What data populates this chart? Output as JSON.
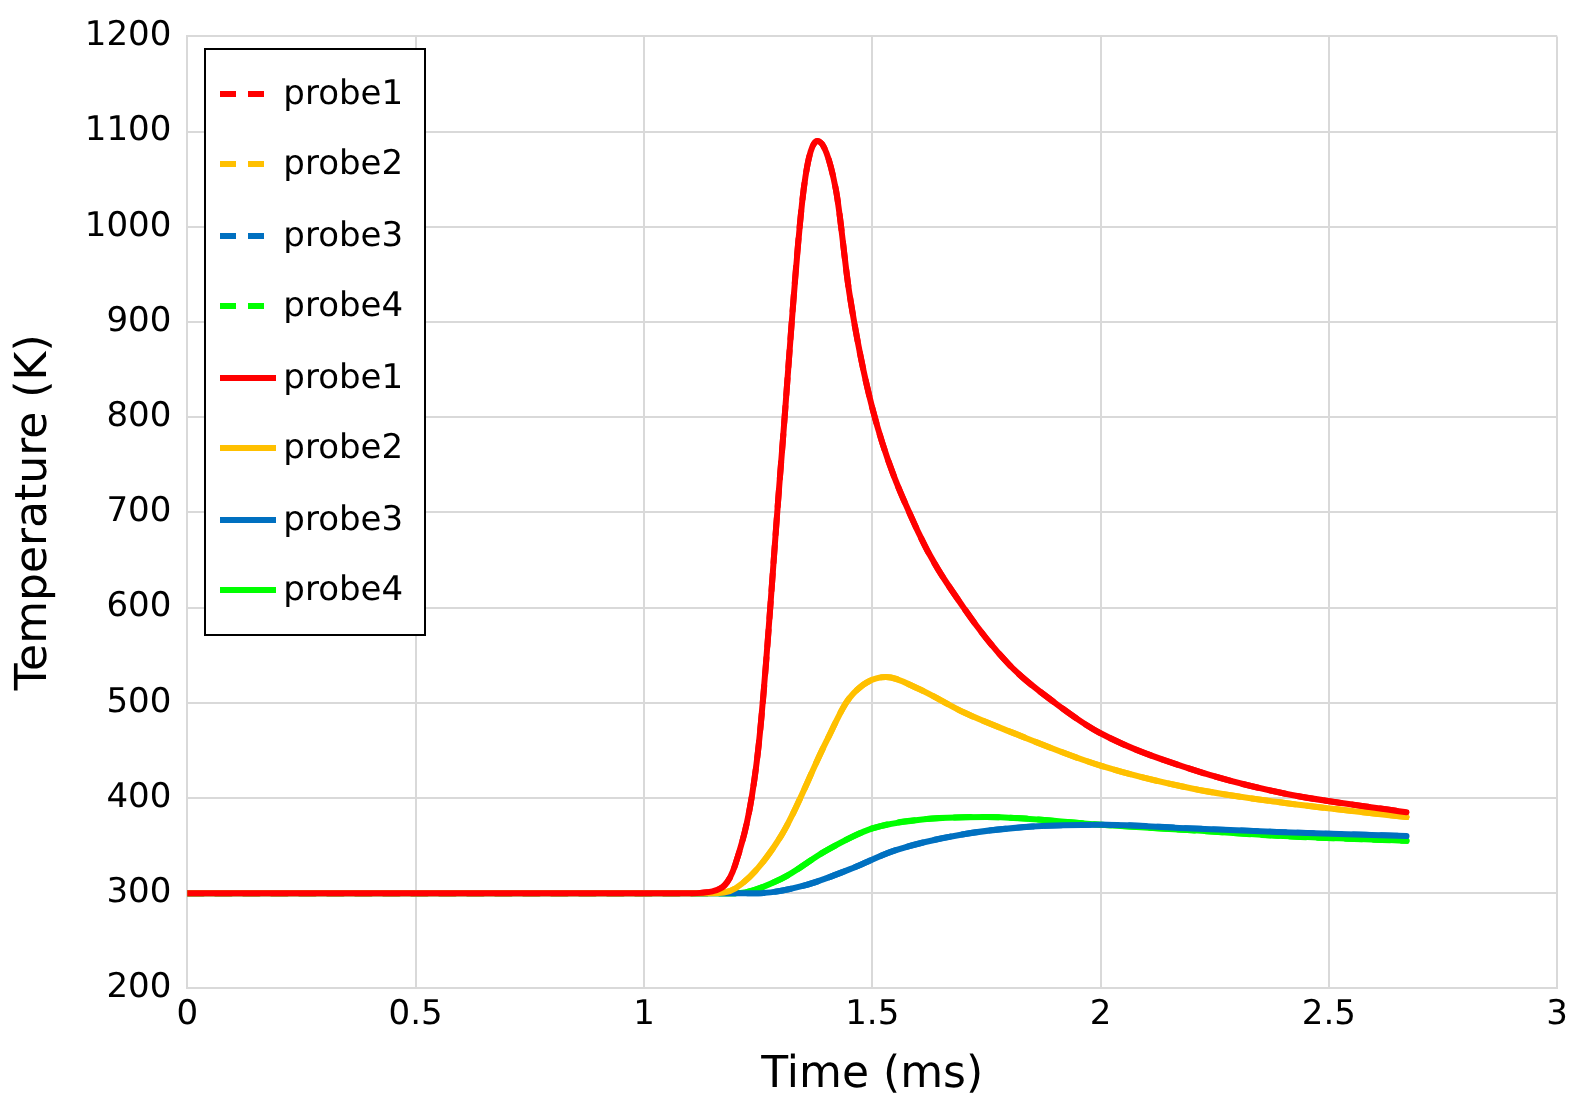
{
  "chart_data": {
    "type": "line",
    "xlabel": "Time (ms)",
    "ylabel": "Temperature (K)",
    "xlim": [
      0,
      3
    ],
    "xticks": [
      0,
      0.5,
      1,
      1.5,
      2,
      2.5,
      3
    ],
    "ylim": [
      200,
      1200
    ],
    "yticks": [
      200,
      300,
      400,
      500,
      600,
      700,
      800,
      900,
      1000,
      1100,
      1200
    ],
    "grid": true,
    "legend": "top left",
    "marker": "none",
    "series": [
      {
        "name": "probe1",
        "color": "#ff0000",
        "line_style": "dashed",
        "x": [
          0,
          1.1,
          1.15,
          1.2,
          1.25,
          1.3,
          1.35,
          1.38,
          1.42,
          1.45,
          1.5,
          1.6,
          1.7,
          1.8,
          1.9,
          2.0,
          2.2,
          2.4,
          2.67
        ],
        "values": [
          300,
          300,
          302,
          330,
          450,
          750,
          1040,
          1090,
          1040,
          930,
          810,
          680,
          600,
          540,
          500,
          468,
          430,
          405,
          385
        ]
      },
      {
        "name": "probe2",
        "color": "#ffc000",
        "line_style": "dashed",
        "x": [
          0,
          1.15,
          1.2,
          1.3,
          1.4,
          1.45,
          1.53,
          1.6,
          1.7,
          1.8,
          2.0,
          2.2,
          2.4,
          2.67
        ],
        "values": [
          300,
          300,
          305,
          360,
          460,
          505,
          527,
          515,
          490,
          470,
          434,
          410,
          395,
          380
        ]
      },
      {
        "name": "probe3",
        "color": "#0070c0",
        "line_style": "dashed",
        "x": [
          0,
          1.25,
          1.35,
          1.45,
          1.55,
          1.7,
          1.85,
          2.0,
          2.2,
          2.4,
          2.67
        ],
        "values": [
          300,
          300,
          308,
          325,
          345,
          362,
          370,
          372,
          368,
          364,
          360
        ]
      },
      {
        "name": "probe4",
        "color": "#00ff00",
        "line_style": "dashed",
        "x": [
          0,
          1.2,
          1.3,
          1.4,
          1.5,
          1.6,
          1.75,
          2.0,
          2.2,
          2.4,
          2.67
        ],
        "values": [
          300,
          300,
          315,
          345,
          368,
          377,
          380,
          372,
          366,
          360,
          355
        ]
      },
      {
        "name": "probe1",
        "color": "#ff0000",
        "line_style": "solid",
        "x": [
          0,
          1.1,
          1.15,
          1.2,
          1.25,
          1.3,
          1.35,
          1.38,
          1.42,
          1.45,
          1.5,
          1.6,
          1.7,
          1.8,
          1.9,
          2.0,
          2.2,
          2.4,
          2.67
        ],
        "values": [
          300,
          300,
          302,
          330,
          450,
          750,
          1040,
          1090,
          1040,
          930,
          810,
          680,
          600,
          540,
          500,
          468,
          430,
          405,
          385
        ]
      },
      {
        "name": "probe2",
        "color": "#ffc000",
        "line_style": "solid",
        "x": [
          0,
          1.15,
          1.2,
          1.3,
          1.4,
          1.45,
          1.53,
          1.6,
          1.7,
          1.8,
          2.0,
          2.2,
          2.4,
          2.67
        ],
        "values": [
          300,
          300,
          305,
          360,
          460,
          505,
          527,
          515,
          490,
          470,
          434,
          410,
          395,
          380
        ]
      },
      {
        "name": "probe3",
        "color": "#0070c0",
        "line_style": "solid",
        "x": [
          0,
          1.25,
          1.35,
          1.45,
          1.55,
          1.7,
          1.85,
          2.0,
          2.2,
          2.4,
          2.67
        ],
        "values": [
          300,
          300,
          308,
          325,
          345,
          362,
          370,
          372,
          368,
          364,
          360
        ]
      },
      {
        "name": "probe4",
        "color": "#00ff00",
        "line_style": "solid",
        "x": [
          0,
          1.2,
          1.3,
          1.4,
          1.5,
          1.6,
          1.75,
          2.0,
          2.2,
          2.4,
          2.67
        ],
        "values": [
          300,
          300,
          315,
          345,
          368,
          377,
          380,
          372,
          366,
          360,
          355
        ]
      }
    ]
  }
}
